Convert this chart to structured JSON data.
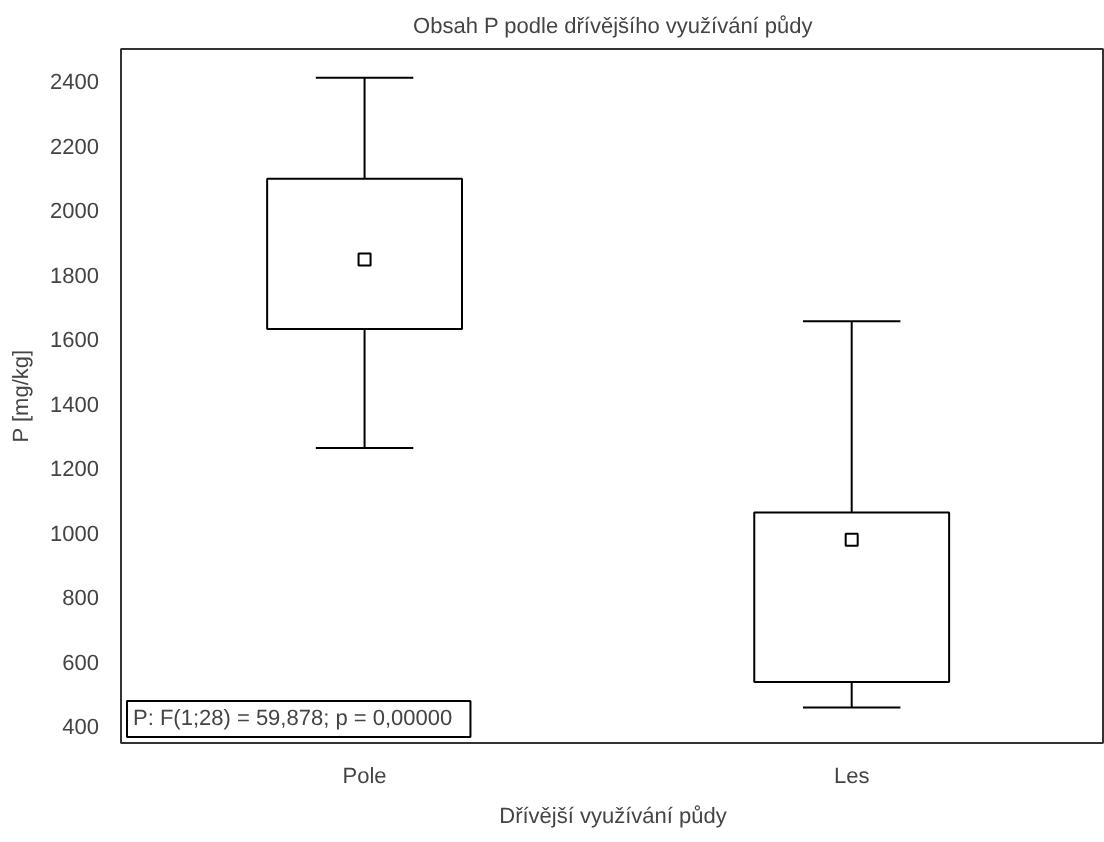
{
  "chart_data": {
    "type": "box",
    "title": "Obsah P podle dřívějšího využívání půdy",
    "xlabel": "Dřívější využívání půdy",
    "ylabel": "P [mg/kg]",
    "categories": [
      "Pole",
      "Les"
    ],
    "boxes": [
      {
        "low": 1263,
        "q1": 1632,
        "median": 1847,
        "q3": 2098,
        "high": 2411
      },
      {
        "low": 458,
        "q1": 537,
        "median": 978,
        "q3": 1063,
        "high": 1656
      }
    ],
    "ylim": [
      348,
      2500
    ],
    "yticks": [
      400,
      600,
      800,
      1000,
      1200,
      1400,
      1600,
      1800,
      2000,
      2200,
      2400
    ],
    "grid": false,
    "marker": "square",
    "annotations": [
      "P:   F(1;28) = 59,878; p = 0,00000"
    ]
  }
}
